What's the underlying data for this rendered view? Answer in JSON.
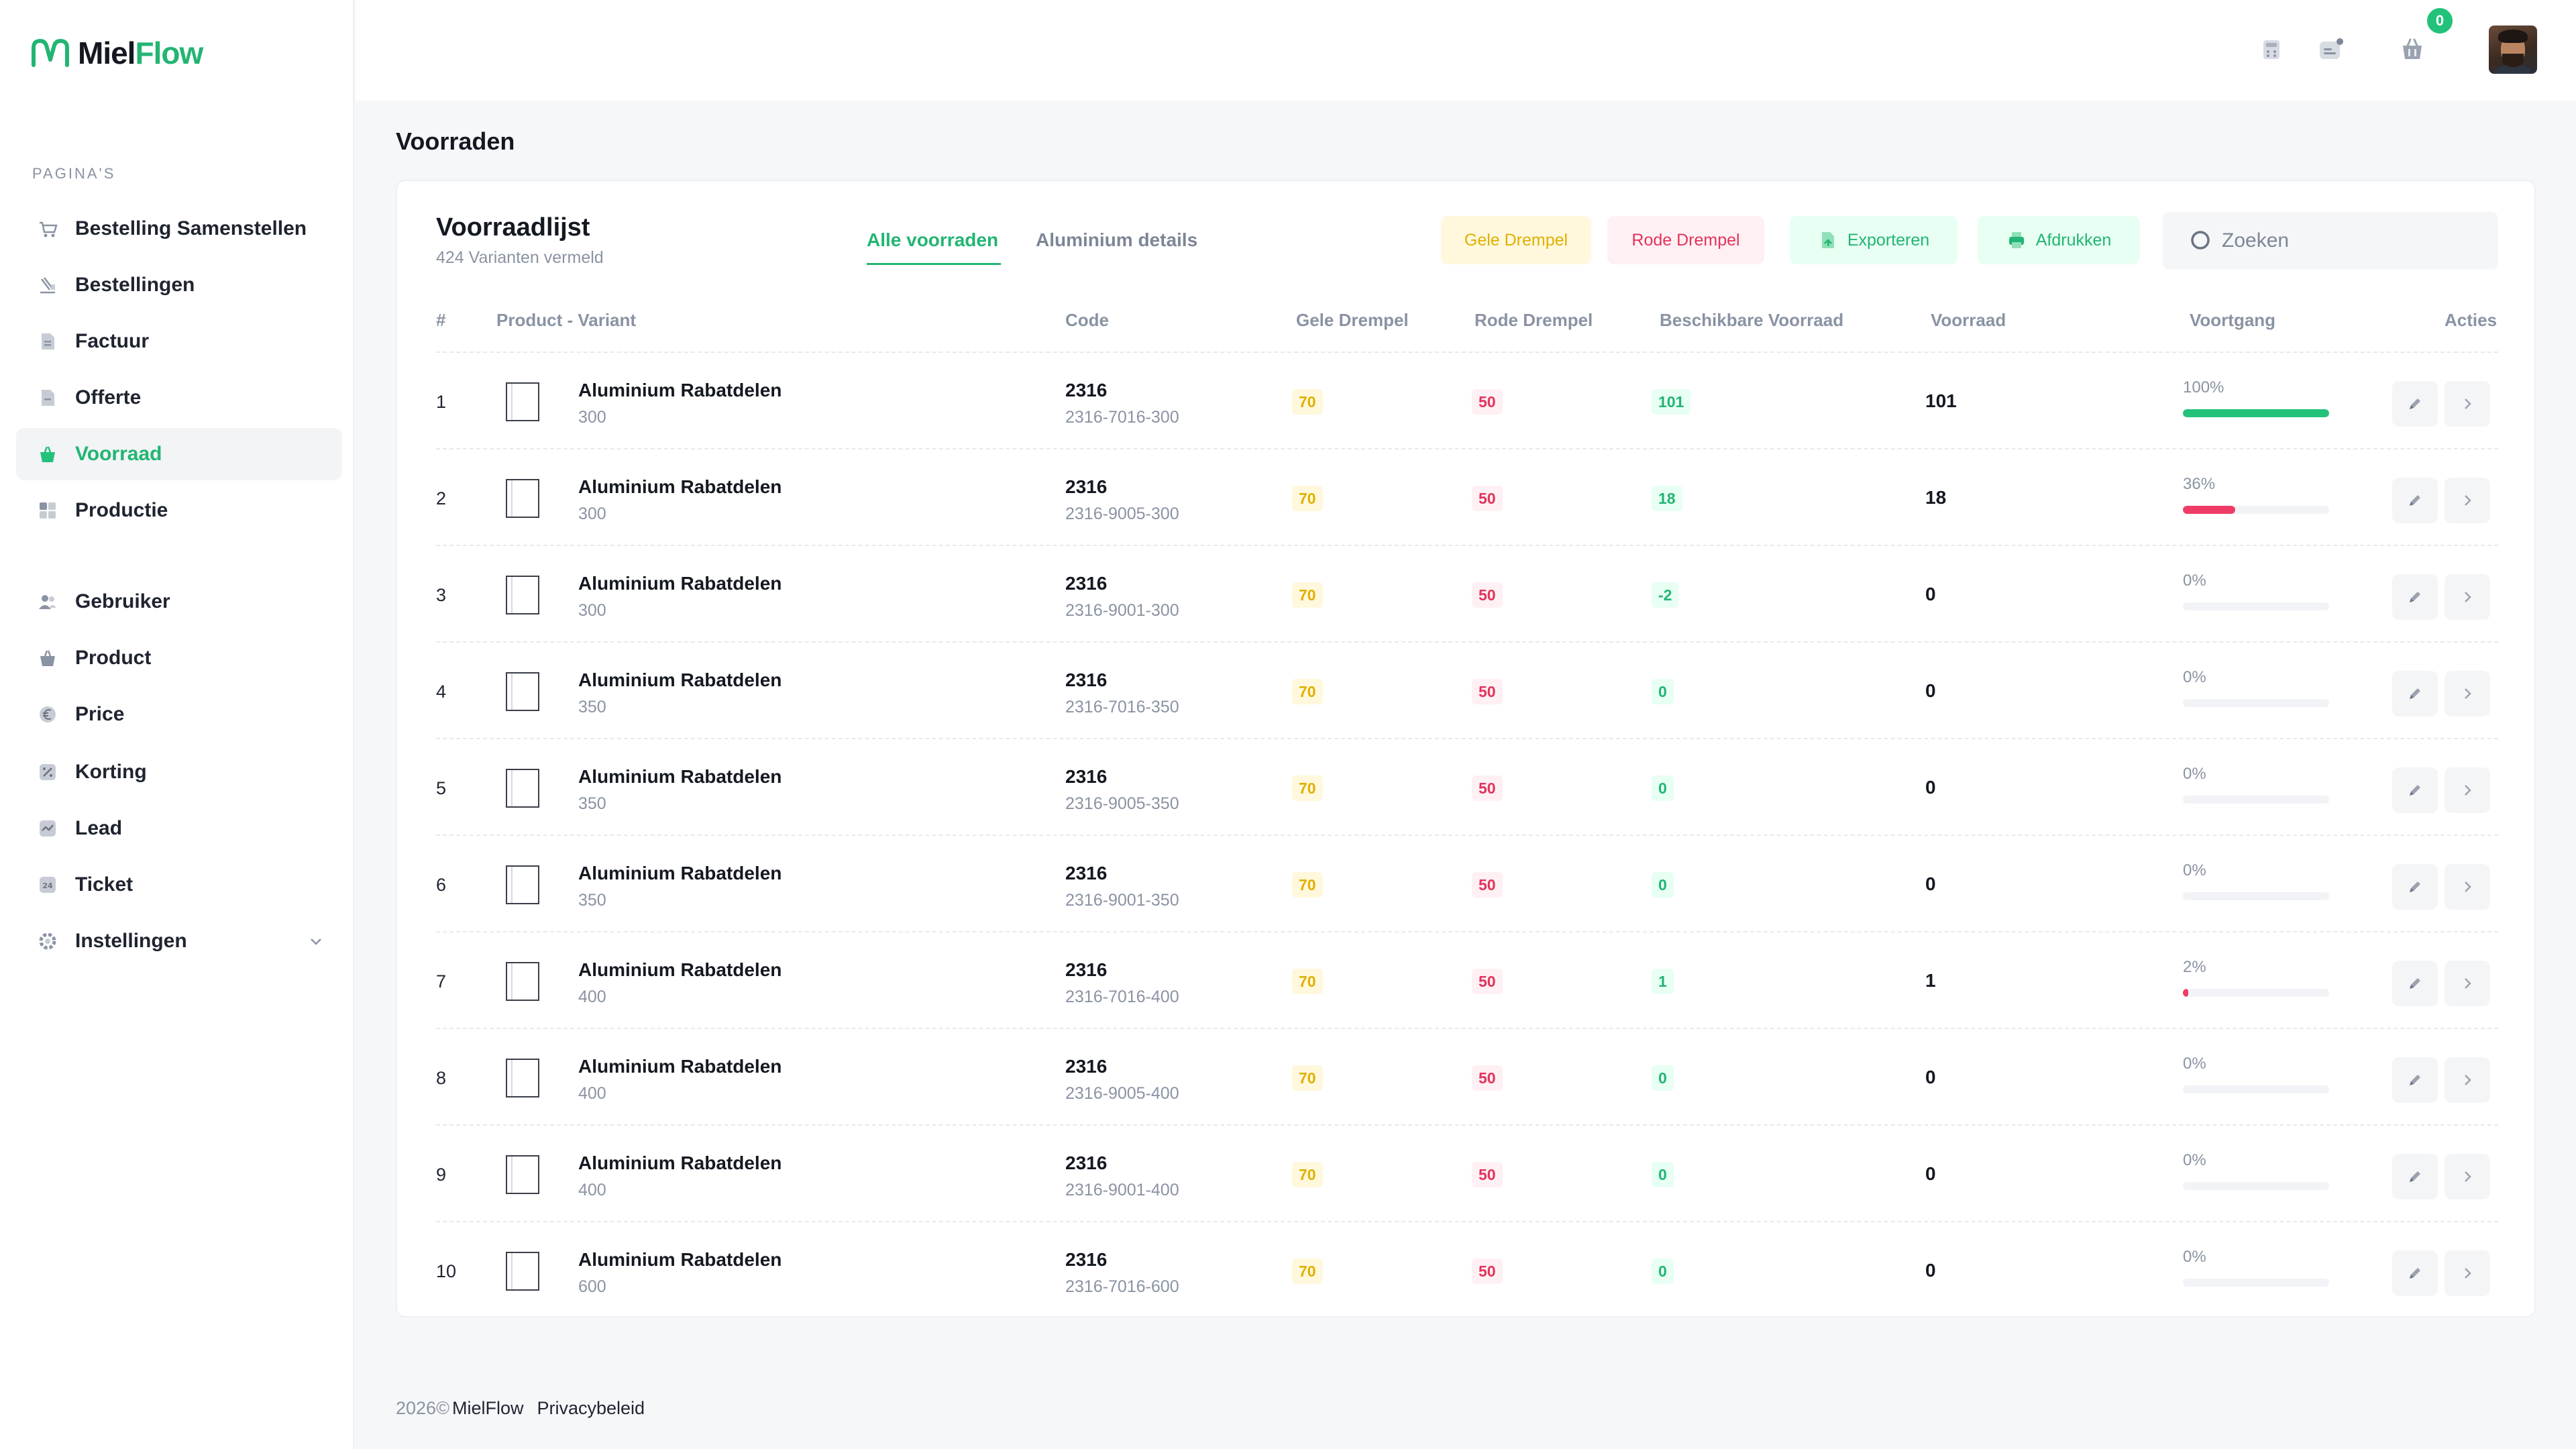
{
  "brand": {
    "part1": "Miel",
    "part2": "Flow"
  },
  "sidebar": {
    "section_label": "PAGINA'S",
    "items": [
      {
        "label": "Bestelling Samenstellen",
        "icon": "cart-icon"
      },
      {
        "label": "Bestellingen",
        "icon": "orders-icon"
      },
      {
        "label": "Factuur",
        "icon": "invoice-icon"
      },
      {
        "label": "Offerte",
        "icon": "quote-icon"
      },
      {
        "label": "Voorraad",
        "icon": "stock-icon",
        "active": true
      },
      {
        "label": "Productie",
        "icon": "grid-icon"
      },
      {
        "label": "Gebruiker",
        "icon": "users-icon"
      },
      {
        "label": "Product",
        "icon": "basket-icon"
      },
      {
        "label": "Price",
        "icon": "euro-icon"
      },
      {
        "label": "Korting",
        "icon": "discount-icon"
      },
      {
        "label": "Lead",
        "icon": "lead-icon"
      },
      {
        "label": "Ticket",
        "icon": "ticket-icon"
      },
      {
        "label": "Instellingen",
        "icon": "gear-icon"
      }
    ]
  },
  "header": {
    "cart_count": "0"
  },
  "page": {
    "title": "Voorraden"
  },
  "card": {
    "title": "Voorraadlijst",
    "subtitle": "424 Varianten vermeld",
    "tabs": [
      "Alle voorraden",
      "Aluminium details"
    ],
    "buttons": {
      "yellow": "Gele Drempel",
      "red": "Rode Drempel",
      "export": "Exporteren",
      "print": "Afdrukken"
    },
    "search_placeholder": "Zoeken"
  },
  "table": {
    "headers": [
      "#",
      "Product - Variant",
      "Code",
      "Gele Drempel",
      "Rode Drempel",
      "Beschikbare Voorraad",
      "Voorraad",
      "Voortgang",
      "Acties"
    ],
    "rows": [
      {
        "num": "1",
        "product": "Aluminium Rabatdelen",
        "variant": "300",
        "code": "2316",
        "sku": "2316-7016-300",
        "yellow": "70",
        "red": "50",
        "available": "101",
        "stock": "101",
        "progress_label": "100%",
        "progress": 100,
        "bar_color": "#22c27a"
      },
      {
        "num": "2",
        "product": "Aluminium Rabatdelen",
        "variant": "300",
        "code": "2316",
        "sku": "2316-9005-300",
        "yellow": "70",
        "red": "50",
        "available": "18",
        "stock": "18",
        "progress_label": "36%",
        "progress": 36,
        "bar_color": "#ef3c66"
      },
      {
        "num": "3",
        "product": "Aluminium Rabatdelen",
        "variant": "300",
        "code": "2316",
        "sku": "2316-9001-300",
        "yellow": "70",
        "red": "50",
        "available": "-2",
        "stock": "0",
        "progress_label": "0%",
        "progress": 0,
        "bar_color": "#ef3c66"
      },
      {
        "num": "4",
        "product": "Aluminium Rabatdelen",
        "variant": "350",
        "code": "2316",
        "sku": "2316-7016-350",
        "yellow": "70",
        "red": "50",
        "available": "0",
        "stock": "0",
        "progress_label": "0%",
        "progress": 0,
        "bar_color": "#ef3c66"
      },
      {
        "num": "5",
        "product": "Aluminium Rabatdelen",
        "variant": "350",
        "code": "2316",
        "sku": "2316-9005-350",
        "yellow": "70",
        "red": "50",
        "available": "0",
        "stock": "0",
        "progress_label": "0%",
        "progress": 0,
        "bar_color": "#ef3c66"
      },
      {
        "num": "6",
        "product": "Aluminium Rabatdelen",
        "variant": "350",
        "code": "2316",
        "sku": "2316-9001-350",
        "yellow": "70",
        "red": "50",
        "available": "0",
        "stock": "0",
        "progress_label": "0%",
        "progress": 0,
        "bar_color": "#ef3c66"
      },
      {
        "num": "7",
        "product": "Aluminium Rabatdelen",
        "variant": "400",
        "code": "2316",
        "sku": "2316-7016-400",
        "yellow": "70",
        "red": "50",
        "available": "1",
        "stock": "1",
        "progress_label": "2%",
        "progress": 2,
        "bar_color": "#ef3c66"
      },
      {
        "num": "8",
        "product": "Aluminium Rabatdelen",
        "variant": "400",
        "code": "2316",
        "sku": "2316-9005-400",
        "yellow": "70",
        "red": "50",
        "available": "0",
        "stock": "0",
        "progress_label": "0%",
        "progress": 0,
        "bar_color": "#ef3c66"
      },
      {
        "num": "9",
        "product": "Aluminium Rabatdelen",
        "variant": "400",
        "code": "2316",
        "sku": "2316-9001-400",
        "yellow": "70",
        "red": "50",
        "available": "0",
        "stock": "0",
        "progress_label": "0%",
        "progress": 0,
        "bar_color": "#ef3c66"
      },
      {
        "num": "10",
        "product": "Aluminium Rabatdelen",
        "variant": "600",
        "code": "2316",
        "sku": "2316-7016-600",
        "yellow": "70",
        "red": "50",
        "available": "0",
        "stock": "0",
        "progress_label": "0%",
        "progress": 0,
        "bar_color": "#ef3c66"
      }
    ]
  },
  "footer": {
    "year": "2026©",
    "brand": "MielFlow",
    "link": "Privacybeleid"
  }
}
